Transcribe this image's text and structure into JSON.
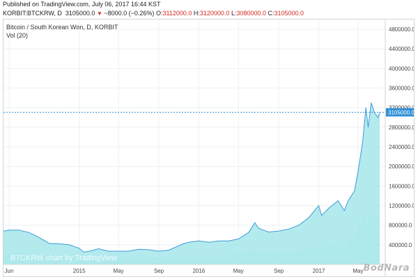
{
  "header": {
    "published": "Published on TradingView.com, July 06, 2017 16:44 KST",
    "symbol": "KORBIT:BTCKRW, D",
    "last": "3105000.0",
    "change_arrow": "▼",
    "change": "−8000.0 (−0.26%)",
    "o_label": "O:",
    "o_value": "3112000.0",
    "h_label": "H:",
    "h_value": "3120000.0",
    "l_label": "L:",
    "l_value": "3080000.0",
    "c_label": "C:",
    "c_value": "3105000.0"
  },
  "colors": {
    "line": "#3d9bd9",
    "area": "#a6e6ea",
    "volume": "#b7eef2",
    "price_badge": "#2f8fd6",
    "down": "#d4281c"
  },
  "watermark": "BodNara",
  "chart_data": {
    "type": "area",
    "title": "Bitcoin / South Korean Won, D, KORBIT",
    "subtitle": "Vol (20)",
    "watermark_label": "BTCKRW chart by TradingView",
    "x": [
      "2014-05-15",
      "2014-06-01",
      "2014-07-01",
      "2014-08-01",
      "2014-09-01",
      "2014-10-01",
      "2014-11-01",
      "2014-12-01",
      "2015-01-01",
      "2015-01-15",
      "2015-02-01",
      "2015-03-01",
      "2015-04-01",
      "2015-05-01",
      "2015-06-01",
      "2015-07-01",
      "2015-08-01",
      "2015-09-01",
      "2015-10-01",
      "2015-11-01",
      "2015-11-15",
      "2015-12-01",
      "2016-01-01",
      "2016-02-01",
      "2016-03-01",
      "2016-04-01",
      "2016-05-01",
      "2016-06-01",
      "2016-06-20",
      "2016-07-01",
      "2016-08-01",
      "2016-09-01",
      "2016-10-01",
      "2016-11-01",
      "2016-12-01",
      "2017-01-01",
      "2017-01-10",
      "2017-02-01",
      "2017-03-01",
      "2017-03-20",
      "2017-04-01",
      "2017-04-20",
      "2017-05-01",
      "2017-05-15",
      "2017-05-25",
      "2017-06-01",
      "2017-06-10",
      "2017-06-20",
      "2017-07-01",
      "2017-07-06"
    ],
    "y": [
      680000,
      700000,
      700000,
      650000,
      550000,
      430000,
      420000,
      400000,
      330000,
      250000,
      270000,
      320000,
      270000,
      270000,
      270000,
      310000,
      300000,
      270000,
      290000,
      380000,
      420000,
      450000,
      480000,
      450000,
      480000,
      480000,
      520000,
      650000,
      850000,
      740000,
      660000,
      680000,
      720000,
      800000,
      950000,
      1200000,
      1000000,
      1150000,
      1300000,
      1100000,
      1300000,
      1500000,
      1900000,
      2500000,
      3200000,
      2800000,
      3300000,
      3100000,
      3000000,
      3105000
    ],
    "ylim": [
      0,
      5000000
    ],
    "y_ticks": [
      400000,
      800000,
      1200000,
      1600000,
      2000000,
      2400000,
      2800000,
      3200000,
      3600000,
      4000000,
      4400000,
      4800000
    ],
    "y_tick_labels": [
      "400000.0",
      "800000.0",
      "1200000.0",
      "1600000.0",
      "2000000.0",
      "2400000.0",
      "2800000.0",
      "3200000.0",
      "3600000.0",
      "4000000.0",
      "4400000.0",
      "4800000.0"
    ],
    "x_ticks": [
      "2014-06-01",
      "2015-01-01",
      "2015-05-01",
      "2015-09-01",
      "2016-01-01",
      "2016-05-01",
      "2016-09-01",
      "2017-01-01",
      "2017-05-01"
    ],
    "x_tick_labels": [
      "Jun",
      "2015",
      "May",
      "Sep",
      "2016",
      "May",
      "Sep",
      "2017",
      "May"
    ],
    "last_value_label": "3105000.0",
    "last_value": 3105000,
    "grid": true
  }
}
